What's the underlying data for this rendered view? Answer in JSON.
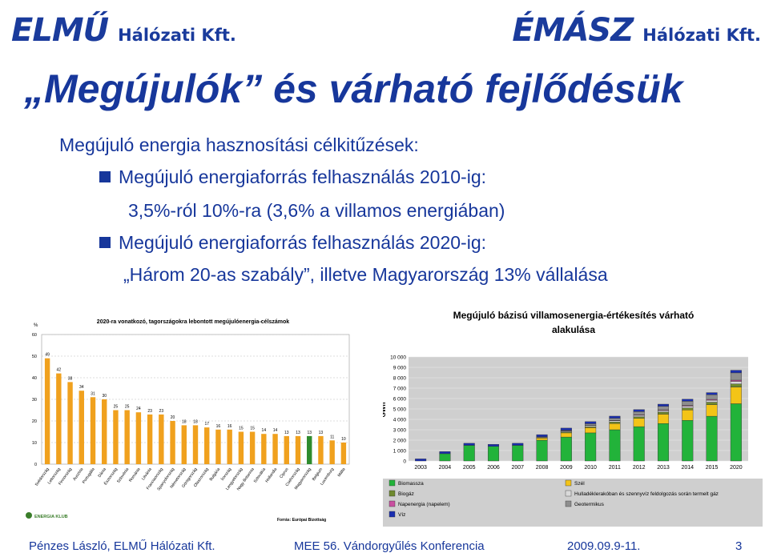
{
  "header": {
    "left_logo": "ELMŰ",
    "left_logo_sub": "Hálózati Kft.",
    "right_logo": "ÉMÁSZ",
    "right_logo_sub": "Hálózati Kft."
  },
  "title": "„Megújulók” és várható fejlődésük",
  "content": {
    "intro": "Megújuló energia hasznosítási célkitűzések:",
    "bullet1": "Megújuló energiaforrás felhasználás 2010-ig:",
    "bullet1_detail": "3,5%-ról 10%-ra (3,6% a villamos energiában)",
    "bullet2": "Megújuló energiaforrás felhasználás 2020-ig:",
    "bullet2_detail": "„Három 20-as szabály”, illetve Magyarország 13% vállalása"
  },
  "footer": {
    "author": "Pénzes László, ELMŰ Hálózati Kft.",
    "event": "MEE 56. Vándorgyűlés Konferencia",
    "date": "2009.09.9-11.",
    "page": "3"
  },
  "chart_data": [
    {
      "type": "bar",
      "title": "2020-ra vonatkozó, tagországokra lebontott megújulóenergia-célszámok",
      "ylabel": "%",
      "ylim": [
        0,
        60
      ],
      "yticks": [
        "0",
        "10",
        "20",
        "30",
        "40",
        "50",
        "60"
      ],
      "categories": [
        "Svédország",
        "Lettország",
        "Finnország",
        "Ausztria",
        "Portugália",
        "Dánia",
        "Észtország",
        "Szlovénia",
        "Románia",
        "Litvánia",
        "Franciaország",
        "Spanyolország",
        "Németország",
        "Görögország",
        "Olaszország",
        "Bulgária",
        "Írország",
        "Lengyelország",
        "Nagy-Britannia",
        "Szlovákia",
        "Hollandia",
        "Ciprus",
        "Csehország",
        "Magyarország",
        "Belgium",
        "Luxemburg",
        "Málta"
      ],
      "values": [
        49,
        42,
        38,
        34,
        31,
        30,
        25,
        25,
        24,
        23,
        23,
        20,
        18,
        18,
        17,
        16,
        16,
        15,
        15,
        14,
        14,
        13,
        13,
        13,
        13,
        11,
        10
      ],
      "labels": [
        "49",
        "42",
        "38",
        "34",
        "31",
        "30",
        "25",
        "25",
        "24",
        "23",
        "23",
        "20",
        "18",
        "18",
        "17",
        "16",
        "16",
        "15",
        "15",
        "14",
        "14",
        "13",
        "13",
        "13",
        "13",
        "11",
        "10"
      ],
      "colors": {
        "bar": "#f0a11e",
        "highlight": "#2e8b2e"
      },
      "highlight_index": 23,
      "source": "Forrás: Európai Bizottság",
      "logo_text": "ENERGIA KLUB"
    },
    {
      "type": "bar",
      "title": "Megújuló bázisú villamosenergia-értékesítés várható alakulása",
      "ylabel": "GWh",
      "ylim": [
        0,
        10000
      ],
      "yticks": [
        "0",
        "1 000",
        "2 000",
        "3 000",
        "4 000",
        "5 000",
        "6 000",
        "7 000",
        "8 000",
        "9 000",
        "10 000"
      ],
      "categories": [
        "2003",
        "2004",
        "2005",
        "2006",
        "2007",
        "2008",
        "2009",
        "2010",
        "2011",
        "2012",
        "2013",
        "2014",
        "2015",
        "2020"
      ],
      "series": [
        {
          "name": "Biomassza",
          "color": "#22b33a",
          "values": [
            0,
            700,
            1500,
            1400,
            1500,
            2000,
            2300,
            2700,
            3000,
            3300,
            3600,
            3900,
            4300,
            5500
          ]
        },
        {
          "name": "Szél",
          "color": "#f3c417",
          "values": [
            0,
            0,
            0,
            0,
            0,
            200,
            400,
            500,
            600,
            800,
            900,
            1000,
            1100,
            1600
          ]
        },
        {
          "name": "Biogáz",
          "color": "#6f8a2e",
          "values": [
            0,
            0,
            0,
            0,
            0,
            50,
            100,
            100,
            150,
            150,
            200,
            200,
            250,
            300
          ]
        },
        {
          "name": "Hulladéklerakóban és szennyvíz feldolgozás során termelt gáz",
          "color": "#d9d9d9",
          "values": [
            0,
            0,
            0,
            0,
            0,
            60,
            80,
            100,
            120,
            140,
            150,
            170,
            190,
            250
          ]
        },
        {
          "name": "Napenergia (napelem)",
          "color": "#c94fa0",
          "values": [
            0,
            0,
            0,
            0,
            0,
            0,
            20,
            30,
            40,
            50,
            60,
            70,
            80,
            120
          ]
        },
        {
          "name": "Geotermikus",
          "color": "#8e8e8e",
          "values": [
            0,
            0,
            0,
            0,
            0,
            20,
            60,
            150,
            200,
            300,
            350,
            400,
            450,
            700
          ]
        },
        {
          "name": "Víz",
          "color": "#1a2eb0",
          "values": [
            200,
            200,
            200,
            200,
            200,
            200,
            200,
            200,
            200,
            200,
            200,
            200,
            200,
            250
          ]
        }
      ]
    }
  ]
}
